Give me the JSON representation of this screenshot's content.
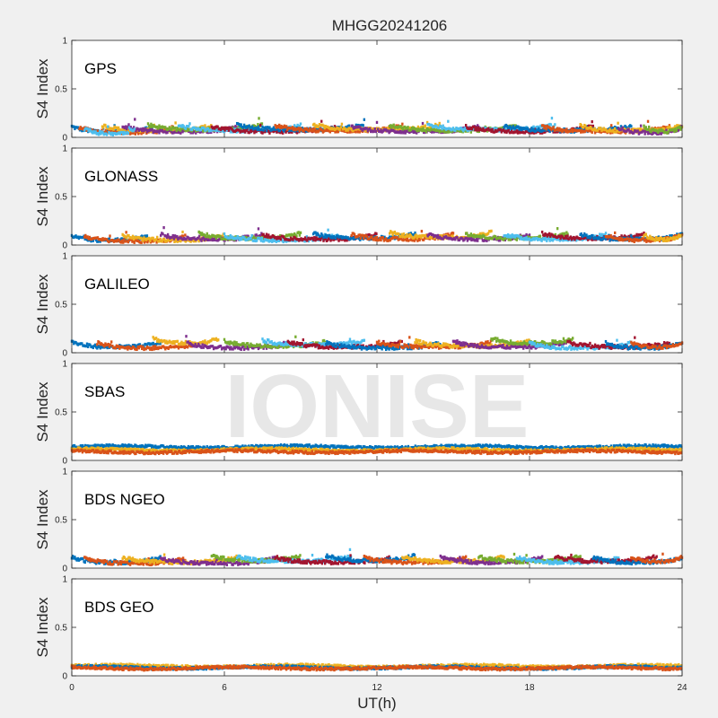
{
  "chart_data": {
    "type": "scatter",
    "title": "MHGG20241206",
    "xlabel": "UT(h)",
    "ylabel": "S4 Index",
    "xlim": [
      0,
      24
    ],
    "ylim": [
      0,
      1
    ],
    "xticks": [
      "0",
      "6",
      "12",
      "18",
      "24"
    ],
    "yticks": [
      "0",
      "0.5",
      "1"
    ],
    "watermark": "IONISE",
    "series_colors": [
      "#0072BD",
      "#D95319",
      "#EDB120",
      "#7E2F8E",
      "#77AC30",
      "#4DBEEE",
      "#A2142F"
    ],
    "panels": [
      {
        "label": "GPS",
        "series_colors": [
          "#0072BD",
          "#D95319",
          "#EDB120",
          "#7E2F8E",
          "#77AC30",
          "#4DBEEE",
          "#A2142F"
        ],
        "arcs": [
          [
            0,
            3.2,
            0.08
          ],
          [
            0.3,
            4.0,
            0.07
          ],
          [
            1.2,
            5.5,
            0.09
          ],
          [
            2.0,
            6.5,
            0.08
          ],
          [
            3.0,
            7.5,
            0.1
          ],
          [
            4.2,
            9.0,
            0.09
          ],
          [
            5.5,
            10.5,
            0.08
          ],
          [
            6.5,
            11.5,
            0.1
          ],
          [
            8.0,
            13.0,
            0.09
          ],
          [
            9.5,
            14.5,
            0.1
          ],
          [
            11.0,
            16.0,
            0.08
          ],
          [
            12.5,
            17.5,
            0.09
          ],
          [
            14.0,
            19.0,
            0.1
          ],
          [
            15.5,
            20.5,
            0.08
          ],
          [
            17.0,
            22.0,
            0.09
          ],
          [
            18.5,
            23.5,
            0.08
          ],
          [
            20.0,
            24.0,
            0.09
          ],
          [
            21.5,
            24.0,
            0.07
          ],
          [
            22.5,
            24.0,
            0.08
          ],
          [
            0.5,
            2.5,
            0.06
          ]
        ]
      },
      {
        "label": "GLONASS",
        "series_colors": [
          "#0072BD",
          "#D95319",
          "#EDB120",
          "#7E2F8E",
          "#77AC30",
          "#4DBEEE",
          "#A2142F"
        ],
        "arcs": [
          [
            0,
            3.0,
            0.07
          ],
          [
            0.5,
            4.5,
            0.06
          ],
          [
            2.0,
            6.0,
            0.07
          ],
          [
            3.5,
            7.5,
            0.08
          ],
          [
            5.0,
            9.0,
            0.09
          ],
          [
            6.0,
            10.5,
            0.07
          ],
          [
            7.5,
            12.0,
            0.08
          ],
          [
            9.5,
            13.5,
            0.09
          ],
          [
            11.0,
            15.0,
            0.08
          ],
          [
            12.5,
            16.5,
            0.1
          ],
          [
            14.0,
            18.0,
            0.08
          ],
          [
            15.5,
            19.5,
            0.09
          ],
          [
            17.0,
            21.0,
            0.08
          ],
          [
            18.5,
            22.5,
            0.09
          ],
          [
            20.0,
            24.0,
            0.08
          ],
          [
            21.0,
            24.0,
            0.07
          ],
          [
            22.5,
            24.0,
            0.08
          ]
        ]
      },
      {
        "label": "GALILEO",
        "series_colors": [
          "#0072BD",
          "#D95319",
          "#EDB120",
          "#7E2F8E",
          "#77AC30",
          "#4DBEEE",
          "#A2142F"
        ],
        "arcs": [
          [
            0,
            3.5,
            0.08
          ],
          [
            1.0,
            5.0,
            0.07
          ],
          [
            3.2,
            5.8,
            0.12
          ],
          [
            4.5,
            8.5,
            0.07
          ],
          [
            6.0,
            10.0,
            0.09
          ],
          [
            7.5,
            11.5,
            0.1
          ],
          [
            8.5,
            13.0,
            0.08
          ],
          [
            10.0,
            14.5,
            0.07
          ],
          [
            12.0,
            16.5,
            0.08
          ],
          [
            13.5,
            18.0,
            0.09
          ],
          [
            15.0,
            19.5,
            0.08
          ],
          [
            16.5,
            19.7,
            0.12
          ],
          [
            18.0,
            22.0,
            0.07
          ],
          [
            19.5,
            23.5,
            0.08
          ],
          [
            21.0,
            24.0,
            0.07
          ],
          [
            22.0,
            24.0,
            0.08
          ]
        ]
      },
      {
        "label": "SBAS",
        "series_colors": [
          "#0072BD",
          "#EDB120",
          "#D95319"
        ],
        "arcs": [
          [
            0,
            24.0,
            0.14
          ],
          [
            0,
            24.0,
            0.11
          ],
          [
            0,
            24.0,
            0.09
          ]
        ]
      },
      {
        "label": "BDS NGEO",
        "series_colors": [
          "#0072BD",
          "#D95319",
          "#EDB120",
          "#7E2F8E",
          "#77AC30",
          "#4DBEEE",
          "#A2142F"
        ],
        "arcs": [
          [
            0,
            3.5,
            0.08
          ],
          [
            0.5,
            4.5,
            0.07
          ],
          [
            2.0,
            6.5,
            0.08
          ],
          [
            3.5,
            8.0,
            0.07
          ],
          [
            5.5,
            9.0,
            0.1
          ],
          [
            6.5,
            11.0,
            0.09
          ],
          [
            8.0,
            12.5,
            0.08
          ],
          [
            10.0,
            13.5,
            0.1
          ],
          [
            11.5,
            15.5,
            0.08
          ],
          [
            13.0,
            17.0,
            0.09
          ],
          [
            14.5,
            18.5,
            0.08
          ],
          [
            16.0,
            20.0,
            0.09
          ],
          [
            17.5,
            21.5,
            0.08
          ],
          [
            19.0,
            23.0,
            0.09
          ],
          [
            20.5,
            24.0,
            0.08
          ],
          [
            22.0,
            24.0,
            0.09
          ]
        ]
      },
      {
        "label": "BDS GEO",
        "series_colors": [
          "#EDB120",
          "#0072BD",
          "#D95319"
        ],
        "arcs": [
          [
            0,
            24.0,
            0.1
          ],
          [
            0,
            24.0,
            0.085
          ],
          [
            0,
            24.0,
            0.08
          ]
        ]
      }
    ]
  }
}
